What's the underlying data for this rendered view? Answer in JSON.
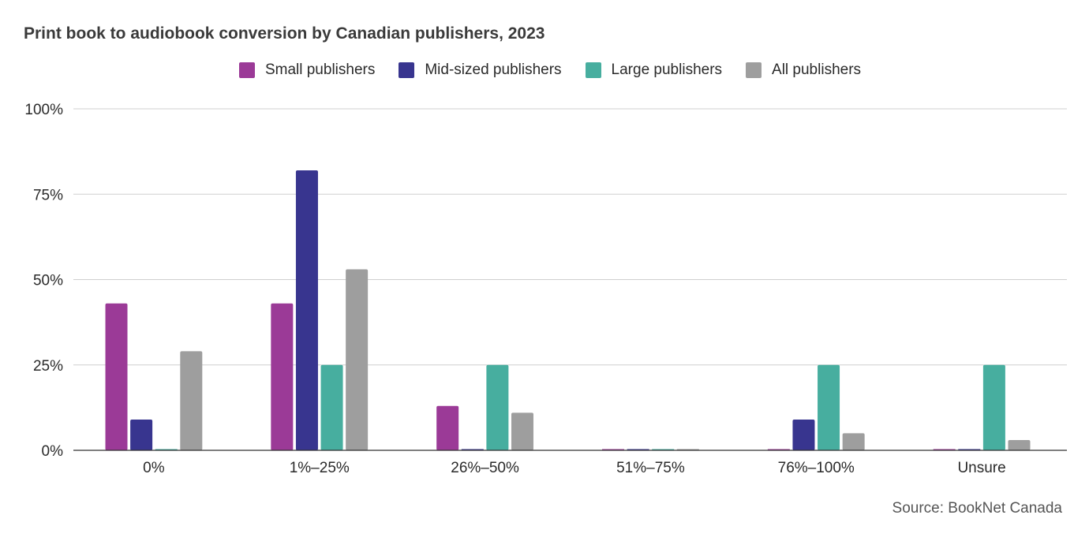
{
  "chart_data": {
    "type": "bar",
    "title": "Print book to audiobook conversion by Canadian publishers, 2023",
    "xlabel": "",
    "ylabel": "",
    "categories": [
      "0%",
      "1%–25%",
      "26%–50%",
      "51%–75%",
      "76%–100%",
      "Unsure"
    ],
    "yticks": [
      "0%",
      "25%",
      "50%",
      "75%",
      "100%"
    ],
    "ylim": [
      0,
      100
    ],
    "grid": true,
    "legend_position": "top-center",
    "series": [
      {
        "name": "Small publishers",
        "color": "#9b3a97",
        "values": [
          43,
          43,
          13,
          0,
          0,
          0
        ]
      },
      {
        "name": "Mid-sized publishers",
        "color": "#38358f",
        "values": [
          9,
          82,
          0,
          0,
          9,
          0
        ]
      },
      {
        "name": "Large publishers",
        "color": "#47ae9f",
        "values": [
          0,
          25,
          25,
          0,
          25,
          25
        ]
      },
      {
        "name": "All publishers",
        "color": "#9e9e9e",
        "values": [
          29,
          53,
          11,
          0,
          5,
          3
        ]
      }
    ],
    "source": "Source: BookNet Canada"
  }
}
